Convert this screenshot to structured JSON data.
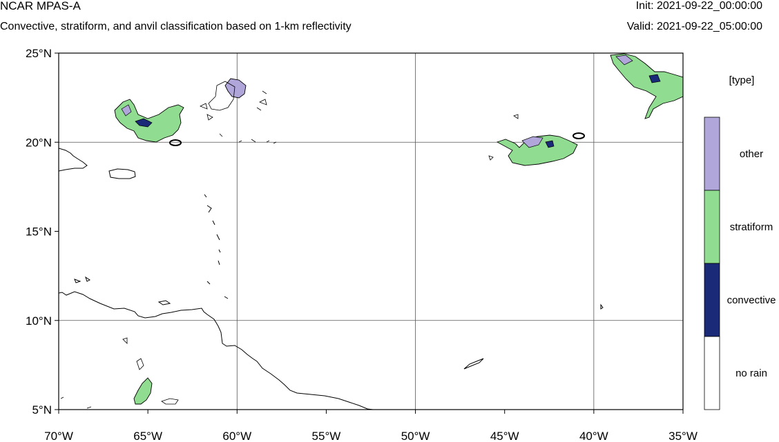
{
  "header": {
    "title": "NCAR MPAS-A",
    "subtitle": "Convective, stratiform, and anvil classification based on 1-km reflectivity",
    "init": "Init: 2021-09-22_00:00:00",
    "valid": "Valid: 2021-09-22_05:00:00"
  },
  "map": {
    "projection": "cylindrical equidistant",
    "lon_range": [
      -70,
      -35
    ],
    "lat_range": [
      5,
      25
    ],
    "x_ticks": [
      {
        "value": -70,
        "label": "70°W"
      },
      {
        "value": -65,
        "label": "65°W"
      },
      {
        "value": -60,
        "label": "60°W"
      },
      {
        "value": -55,
        "label": "55°W"
      },
      {
        "value": -50,
        "label": "50°W"
      },
      {
        "value": -45,
        "label": "45°W"
      },
      {
        "value": -40,
        "label": "40°W"
      },
      {
        "value": -35,
        "label": "35°W"
      }
    ],
    "y_ticks": [
      {
        "value": 25,
        "label": "25°N"
      },
      {
        "value": 20,
        "label": "20°N"
      },
      {
        "value": 15,
        "label": "15°N"
      },
      {
        "value": 10,
        "label": "10°N"
      },
      {
        "value": 5,
        "label": "5°N"
      }
    ],
    "gridlines": {
      "lon": [
        -60,
        -50,
        -40
      ],
      "lat": [
        20,
        10
      ]
    },
    "colors": {
      "convective": "#1a2a78",
      "stratiform": "#90dc90",
      "other": "#b0a6da",
      "no_rain": "#ffffff",
      "coastline": "#000000"
    }
  },
  "legend": {
    "title": "[type]",
    "entries": [
      {
        "label": "other",
        "color": "#b0a6da"
      },
      {
        "label": "stratiform",
        "color": "#90dc90"
      },
      {
        "label": "convective",
        "color": "#1a2a78"
      },
      {
        "label": "no rain",
        "color": "#ffffff"
      }
    ]
  }
}
